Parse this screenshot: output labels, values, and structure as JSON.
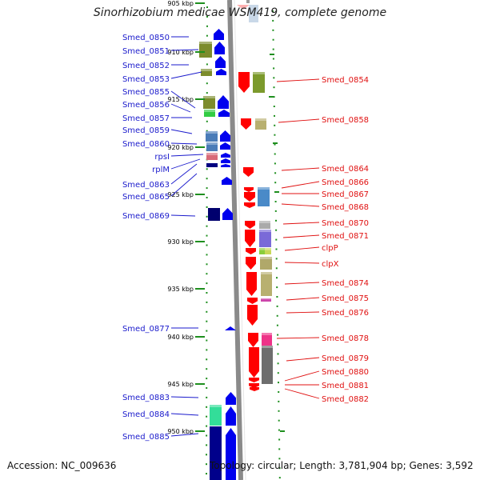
{
  "title": "Sinorhizobium medicae WSM419, complete genome",
  "footer": {
    "accession": "Accession: NC_009636",
    "topology": "Topology: circular; Length: 3,781,904 bp; Genes: 3,592"
  },
  "colors": {
    "left_label": "#1a1acc",
    "right_label": "#e01010",
    "strand_left": "#0000ee",
    "strand_right": "#ff0000",
    "backbone": "#8a8a8a",
    "tick": "#1f8f1f"
  },
  "ruler_ticks": [
    "905 kbp",
    "910 kbp",
    "915 kbp",
    "920 kbp",
    "925 kbp",
    "930 kbp",
    "935 kbp",
    "940 kbp",
    "945 kbp",
    "950 kbp"
  ],
  "genes_left": [
    "Smed_0850",
    "Smed_0851",
    "Smed_0852",
    "Smed_0853",
    "Smed_0855",
    "Smed_0856",
    "Smed_0857",
    "Smed_0859",
    "Smed_0860",
    "rpsI",
    "rplM",
    "Smed_0863",
    "Smed_0865",
    "Smed_0869",
    "Smed_0877",
    "Smed_0883",
    "Smed_0884",
    "Smed_0885"
  ],
  "genes_right": [
    "Smed_0854",
    "Smed_0858",
    "Smed_0864",
    "Smed_0866",
    "Smed_0867",
    "Smed_0868",
    "Smed_0870",
    "Smed_0871",
    "clpP",
    "clpX",
    "Smed_0874",
    "Smed_0875",
    "Smed_0876",
    "Smed_0878",
    "Smed_0879",
    "Smed_0880",
    "Smed_0881",
    "Smed_0882"
  ]
}
